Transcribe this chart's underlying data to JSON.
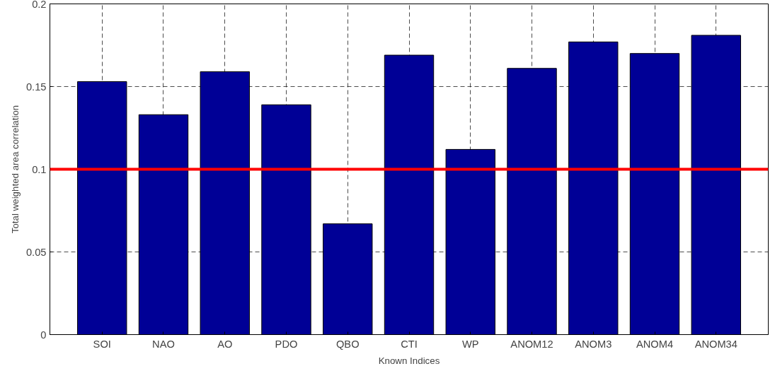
{
  "chart_data": {
    "type": "bar",
    "xlabel": "Known Indices",
    "ylabel": "Total weighted area correlation",
    "categories": [
      "SOI",
      "NAO",
      "AO",
      "PDO",
      "QBO",
      "CTI",
      "WP",
      "ANOM12",
      "ANOM3",
      "ANOM4",
      "ANOM34"
    ],
    "values": [
      0.153,
      0.133,
      0.159,
      0.139,
      0.067,
      0.169,
      0.112,
      0.161,
      0.177,
      0.17,
      0.181
    ],
    "color": "#000096",
    "ylim": [
      0,
      0.2
    ],
    "yticks": [
      0,
      0.05,
      0.1,
      0.15,
      0.2
    ],
    "ref_lines": [
      {
        "axis": "y",
        "value": 0.1,
        "color": "#ff0000"
      }
    ],
    "grid": true
  }
}
